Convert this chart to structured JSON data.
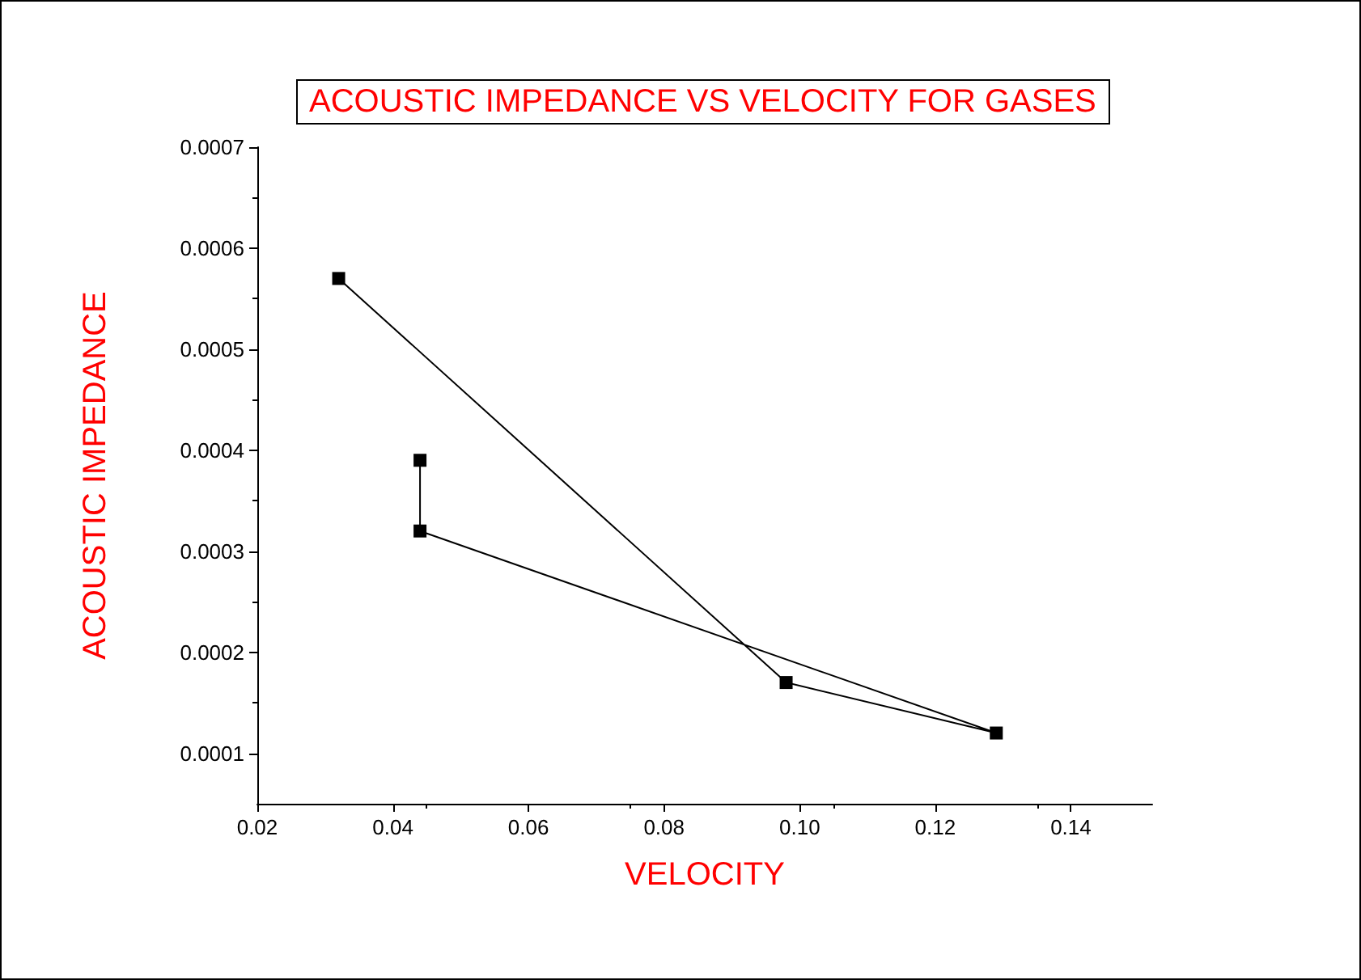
{
  "chart_data": {
    "type": "line",
    "title": "ACOUSTIC IMPEDANCE VS VELOCITY FOR GASES",
    "xlabel": "VELOCITY",
    "ylabel": "ACOUSTIC IMPEDANCE",
    "series": [
      {
        "color": "#000000",
        "x": [
          0.044,
          0.044,
          0.129,
          0.098,
          0.032
        ],
        "values": [
          0.00039,
          0.00032,
          0.00012,
          0.00017,
          0.00057
        ]
      }
    ],
    "xlim": [
      0.02,
      0.152
    ],
    "xticks": [
      0.02,
      0.04,
      0.06,
      0.08,
      {
        "value": 0.1,
        "label": "0.10"
      },
      0.12,
      0.14
    ],
    "ylim": [
      5e-05,
      0.0007
    ],
    "yticks": [
      0.0001,
      0.0002,
      0.0003,
      0.0004,
      0.0005,
      0.0006,
      0.0007
    ],
    "marker": "square",
    "line_style": "solid",
    "grid": false
  }
}
